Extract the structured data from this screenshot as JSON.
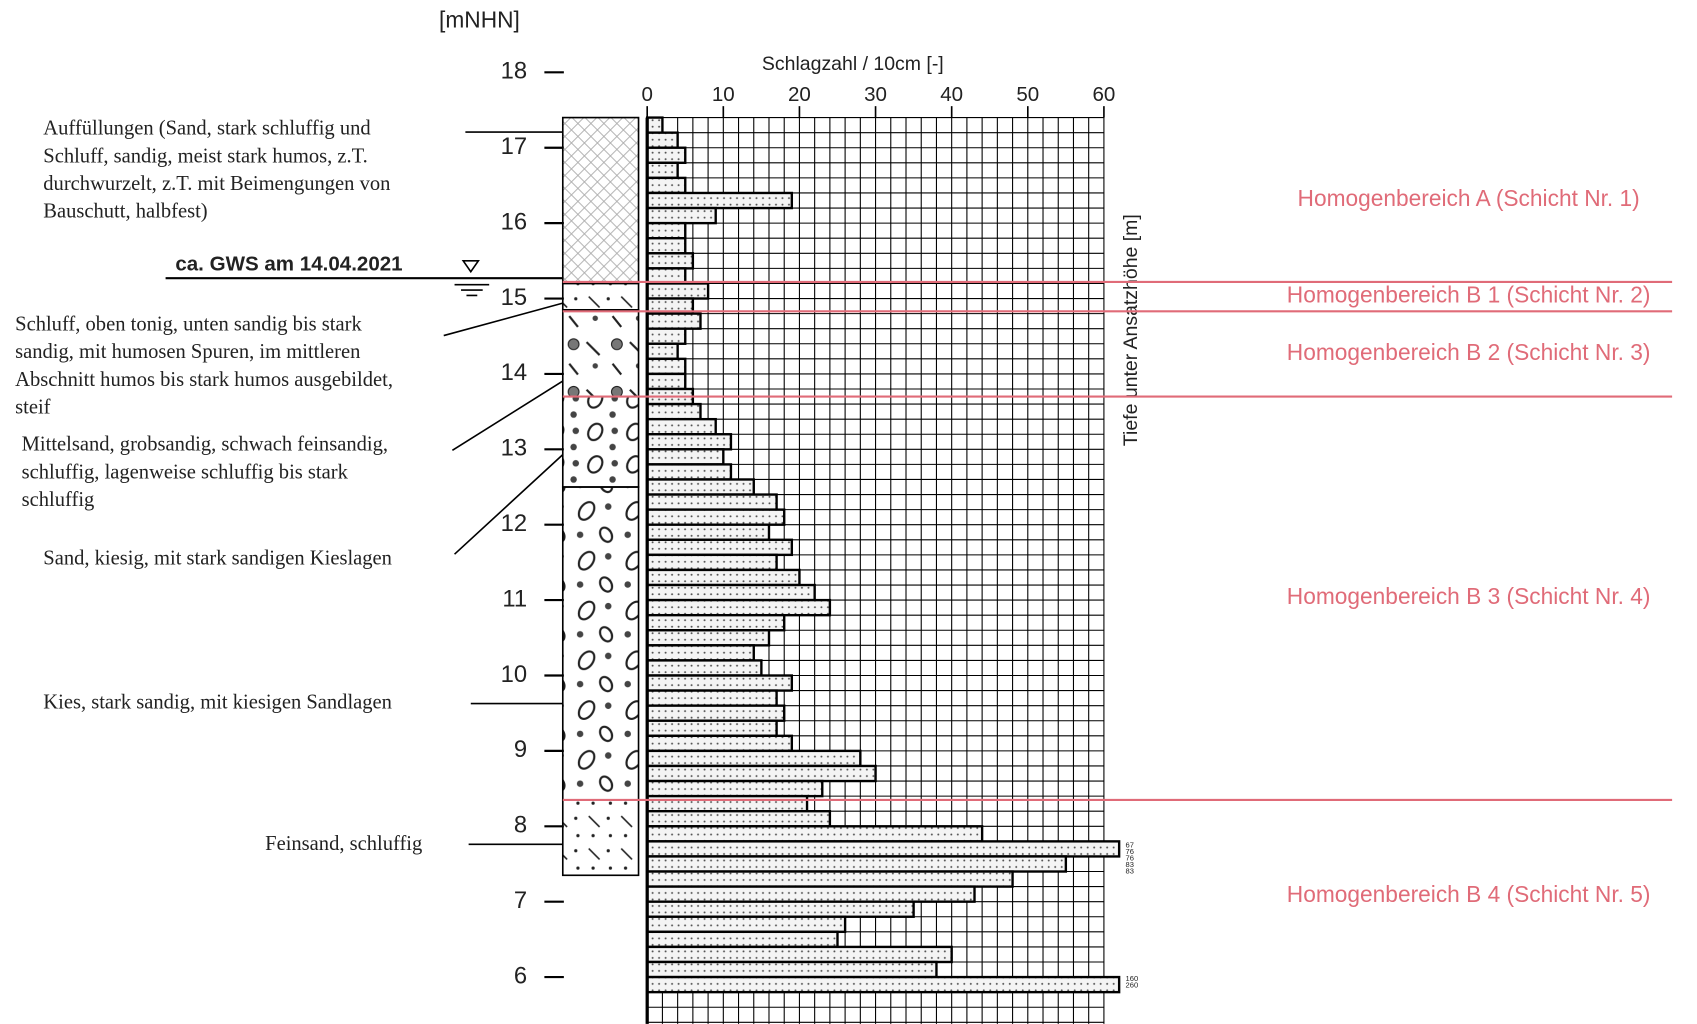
{
  "chart_data": {
    "type": "histogram",
    "orientation": "horizontal",
    "x_label": "Schlagzahl / 10cm [-]",
    "y_label": "[mNHN]",
    "y2_label": "Tiefe unter Ansatzhöhe [m]",
    "xlim": [
      0,
      60
    ],
    "xticks": [
      0,
      10,
      20,
      30,
      40,
      50,
      60
    ],
    "ylim": [
      5.35,
      18.7
    ],
    "yticks": [
      6,
      7,
      8,
      9,
      10,
      11,
      12,
      13,
      14,
      15,
      16,
      17,
      18
    ],
    "grid": true,
    "color": "#000000",
    "bins": [
      17.4,
      17.2,
      17.0,
      16.8,
      16.6,
      16.4,
      16.2,
      16.0,
      15.8,
      15.6,
      15.4,
      15.2,
      15.0,
      14.8,
      14.6,
      14.4,
      14.2,
      14.0,
      13.8,
      13.6,
      13.4,
      13.2,
      13.0,
      12.8,
      12.6,
      12.4,
      12.2,
      12.0,
      11.8,
      11.6,
      11.4,
      11.2,
      11.0,
      10.8,
      10.6,
      10.4,
      10.2,
      10.0,
      9.8,
      9.6,
      9.4,
      9.2,
      9.0,
      8.8,
      8.6,
      8.4,
      8.2,
      8.0,
      7.8,
      7.6,
      7.4,
      7.2,
      7.0,
      6.8,
      6.6,
      6.4,
      6.2,
      6.0,
      5.8
    ],
    "values": [
      2,
      4,
      5,
      4,
      5,
      19,
      9,
      5,
      5,
      6,
      5,
      8,
      6,
      7,
      5,
      4,
      5,
      5,
      6,
      7,
      9,
      11,
      10,
      11,
      14,
      17,
      18,
      16,
      19,
      17,
      20,
      22,
      24,
      18,
      16,
      14,
      15,
      19,
      17,
      18,
      17,
      19,
      28,
      30,
      23,
      21,
      24,
      44,
      62,
      55,
      48,
      43,
      35,
      26,
      25,
      40,
      38,
      62
    ],
    "overflow_labels": [
      "67",
      "76",
      "76",
      "83",
      "83",
      "160",
      "260"
    ],
    "soil_layers": [
      {
        "top": 17.4,
        "bottom": 15.2
      },
      {
        "top": 15.2,
        "bottom": 14.85
      },
      {
        "top": 14.85,
        "bottom": 13.7
      },
      {
        "top": 13.7,
        "bottom": 12.5
      },
      {
        "top": 12.5,
        "bottom": 8.35
      },
      {
        "top": 8.35,
        "bottom": 7.35
      }
    ],
    "descriptions": [
      [
        "Auffüllungen (Sand, stark schluffig und",
        "Schluff, sandig, meist stark humos, z.T.",
        "durchwurzelt, z.T. mit Beimengungen von",
        "Bauschutt, halbfest)"
      ],
      [
        "Schluff, oben tonig, unten sandig bis stark",
        "sandig, mit humosen Spuren, im mittleren",
        "Abschnitt humos bis stark humos ausgebildet,",
        "steif"
      ],
      [
        "Mittelsand, grobsandig, schwach feinsandig,",
        "schluffig, lagenweise schluffig bis stark",
        "schluffig"
      ],
      [
        "Sand, kiesig, mit stark sandigen Kieslagen"
      ],
      [
        "Kies, stark sandig, mit kiesigen Sandlagen"
      ],
      [
        "Feinsand, schluffig"
      ]
    ],
    "groundwater": {
      "label": "ca. GWS am 14.04.2021",
      "elevation": 15.27
    },
    "zone_color": "#e06b78",
    "zone_boundaries": [
      15.22,
      14.83,
      13.7,
      8.35
    ],
    "zones": [
      "Homogenbereich A (Schicht Nr. 1)",
      "Homogenbereich B 1 (Schicht Nr. 2)",
      "Homogenbereich B 2 (Schicht Nr. 3)",
      "Homogenbereich B 3 (Schicht Nr. 4)",
      "Homogenbereich B 4 (Schicht Nr. 5)"
    ]
  }
}
